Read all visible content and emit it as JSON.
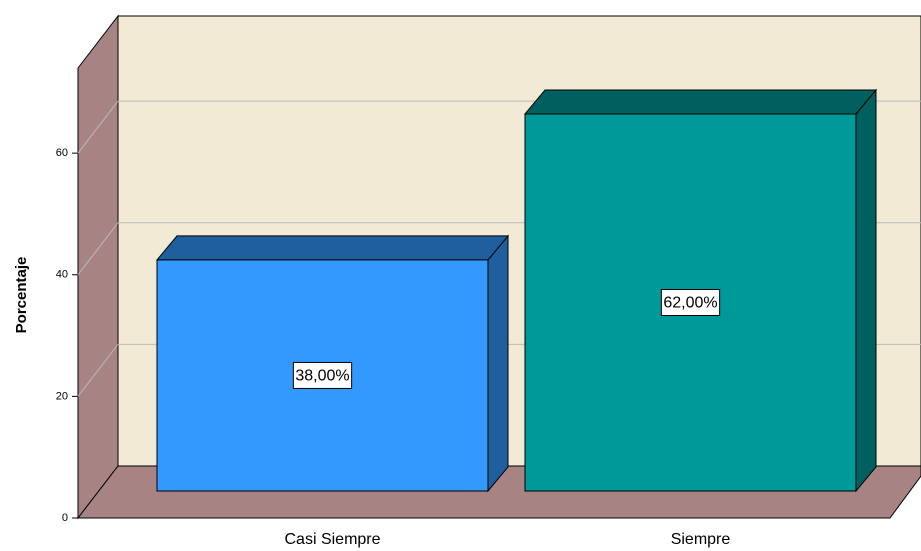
{
  "chart_data": {
    "type": "bar3d",
    "categories": [
      "Casi Siempre",
      "Siempre"
    ],
    "values": [
      38,
      62
    ],
    "value_labels": [
      "38,00%",
      "62,00%"
    ],
    "colors": [
      "#3399ff",
      "#009999"
    ],
    "ylabel": "Porcentaje",
    "ylim": [
      0,
      74
    ],
    "yticks": [
      0,
      20,
      40,
      60
    ],
    "grid": true
  }
}
